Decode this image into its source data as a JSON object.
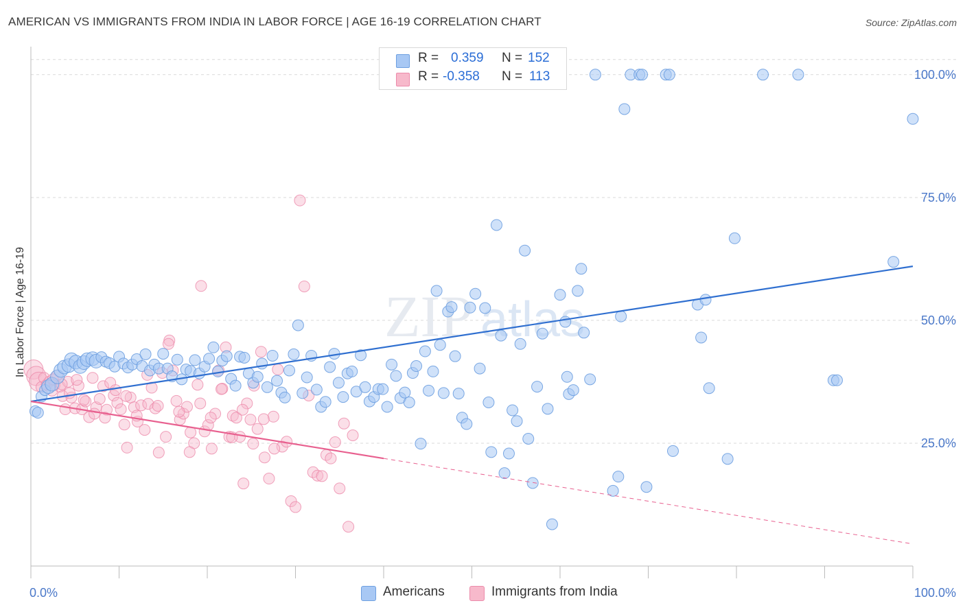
{
  "title": "AMERICAN VS IMMIGRANTS FROM INDIA IN LABOR FORCE | AGE 16-19 CORRELATION CHART",
  "source": "Source: ZipAtlas.com",
  "watermark": "ZIPatlas",
  "legend": {
    "rows": [
      {
        "r_label": "R =",
        "r_value": "0.359",
        "n_label": "N =",
        "n_value": "152",
        "color": "#a8c8f4"
      },
      {
        "r_label": "R =",
        "r_value": "-0.358",
        "n_label": "N =",
        "n_value": "113",
        "color": "#f7b9cb"
      }
    ]
  },
  "bottom_legend": [
    "Americans",
    "Immigrants from India"
  ],
  "colors": {
    "americans_fill": "#a8c8f4",
    "americans_stroke": "#6d9fe0",
    "americans_line": "#2f6fd0",
    "india_fill": "#f7b9cb",
    "india_stroke": "#ec8aaa",
    "india_line": "#e8608f",
    "grid": "#d9d9d9",
    "tick_text": "#4a78c9"
  },
  "chart_data": {
    "type": "scatter",
    "title": "AMERICAN VS IMMIGRANTS FROM INDIA IN LABOR FORCE | AGE 16-19 CORRELATION CHART",
    "xlabel": "",
    "ylabel": "In Labor Force | Age 16-19",
    "xlim": [
      0,
      100
    ],
    "ylim": [
      0,
      105
    ],
    "x_tick_labels": [
      "0.0%",
      "100.0%"
    ],
    "y_tick_labels": [
      "25.0%",
      "50.0%",
      "75.0%",
      "100.0%"
    ],
    "y_ticks": [
      25,
      50,
      75,
      100
    ],
    "grid": true,
    "legend_position": "top-center",
    "series": [
      {
        "name": "Americans",
        "r": 0.359,
        "n": 152,
        "trend": {
          "x": [
            0,
            100
          ],
          "y": [
            33.5,
            61.0
          ],
          "dashed_from": null
        },
        "points": [
          [
            0.5,
            31.5
          ],
          [
            0.8,
            31.2
          ],
          [
            1.2,
            34.5
          ],
          [
            1.6,
            35.8
          ],
          [
            2.0,
            36.5
          ],
          [
            2.4,
            37.0
          ],
          [
            3.0,
            38.5
          ],
          [
            3.4,
            39.8
          ],
          [
            3.8,
            40.5
          ],
          [
            4.3,
            40.8
          ],
          [
            4.6,
            42.0
          ],
          [
            5.1,
            41.5
          ],
          [
            5.6,
            40.6
          ],
          [
            6.0,
            41.4
          ],
          [
            6.4,
            42.0
          ],
          [
            7.0,
            42.2
          ],
          [
            7.4,
            41.7
          ],
          [
            8.0,
            42.5
          ],
          [
            8.5,
            41.6
          ],
          [
            8.9,
            41.3
          ],
          [
            9.5,
            40.6
          ],
          [
            10.0,
            42.6
          ],
          [
            10.5,
            41.2
          ],
          [
            11.0,
            40.4
          ],
          [
            11.5,
            41.0
          ],
          [
            12.0,
            42.1
          ],
          [
            12.6,
            40.7
          ],
          [
            13.0,
            43.1
          ],
          [
            13.5,
            39.8
          ],
          [
            14.0,
            41.0
          ],
          [
            14.5,
            40.2
          ],
          [
            15.0,
            43.2
          ],
          [
            15.5,
            40.2
          ],
          [
            16.0,
            38.6
          ],
          [
            16.6,
            42.0
          ],
          [
            17.1,
            38.0
          ],
          [
            17.6,
            40.0
          ],
          [
            18.1,
            39.7
          ],
          [
            18.6,
            41.9
          ],
          [
            19.1,
            39.2
          ],
          [
            19.7,
            40.6
          ],
          [
            20.2,
            42.2
          ],
          [
            20.7,
            44.5
          ],
          [
            21.2,
            39.6
          ],
          [
            21.7,
            41.8
          ],
          [
            22.2,
            42.7
          ],
          [
            22.7,
            38.1
          ],
          [
            23.2,
            36.7
          ],
          [
            23.7,
            42.6
          ],
          [
            24.2,
            42.4
          ],
          [
            24.7,
            39.2
          ],
          [
            25.2,
            37.3
          ],
          [
            25.7,
            38.5
          ],
          [
            26.2,
            41.2
          ],
          [
            26.8,
            36.4
          ],
          [
            27.4,
            42.8
          ],
          [
            27.9,
            37.7
          ],
          [
            28.4,
            35.3
          ],
          [
            28.8,
            34.3
          ],
          [
            29.3,
            39.8
          ],
          [
            29.8,
            43.1
          ],
          [
            30.3,
            49.0
          ],
          [
            30.8,
            35.2
          ],
          [
            31.3,
            38.4
          ],
          [
            31.8,
            42.8
          ],
          [
            32.4,
            35.9
          ],
          [
            32.9,
            32.4
          ],
          [
            33.4,
            33.4
          ],
          [
            33.9,
            40.5
          ],
          [
            34.4,
            43.2
          ],
          [
            34.9,
            37.3
          ],
          [
            35.4,
            34.4
          ],
          [
            35.9,
            39.2
          ],
          [
            36.4,
            39.6
          ],
          [
            36.9,
            35.5
          ],
          [
            37.4,
            42.9
          ],
          [
            37.9,
            36.4
          ],
          [
            38.4,
            33.5
          ],
          [
            38.9,
            34.4
          ],
          [
            39.4,
            36.0
          ],
          [
            39.9,
            36.0
          ],
          [
            40.4,
            32.4
          ],
          [
            40.9,
            41.0
          ],
          [
            41.4,
            38.7
          ],
          [
            41.9,
            34.2
          ],
          [
            42.4,
            35.3
          ],
          [
            42.9,
            33.3
          ],
          [
            43.3,
            39.3
          ],
          [
            43.7,
            40.7
          ],
          [
            44.2,
            24.9
          ],
          [
            44.7,
            43.7
          ],
          [
            45.1,
            35.7
          ],
          [
            45.6,
            39.6
          ],
          [
            46.0,
            56.0
          ],
          [
            46.4,
            45.0
          ],
          [
            46.8,
            35.2
          ],
          [
            47.3,
            51.8
          ],
          [
            47.7,
            52.7
          ],
          [
            48.1,
            42.7
          ],
          [
            48.5,
            35.1
          ],
          [
            48.9,
            30.2
          ],
          [
            49.4,
            28.9
          ],
          [
            49.8,
            52.6
          ],
          [
            50.4,
            55.4
          ],
          [
            50.9,
            40.2
          ],
          [
            51.5,
            52.5
          ],
          [
            51.9,
            33.3
          ],
          [
            52.2,
            23.2
          ],
          [
            52.8,
            69.4
          ],
          [
            53.3,
            46.9
          ],
          [
            53.7,
            18.9
          ],
          [
            54.2,
            22.9
          ],
          [
            54.6,
            31.7
          ],
          [
            55.1,
            29.5
          ],
          [
            55.5,
            45.2
          ],
          [
            56.0,
            64.2
          ],
          [
            56.4,
            25.9
          ],
          [
            56.9,
            16.9
          ],
          [
            57.4,
            36.5
          ],
          [
            58.0,
            47.3
          ],
          [
            58.6,
            32.0
          ],
          [
            59.1,
            8.5
          ],
          [
            60.0,
            55.2
          ],
          [
            60.6,
            49.7
          ],
          [
            60.8,
            38.5
          ],
          [
            61.0,
            35.0
          ],
          [
            61.5,
            35.8
          ],
          [
            62.0,
            56.0
          ],
          [
            62.4,
            60.5
          ],
          [
            62.7,
            47.5
          ],
          [
            63.4,
            38.0
          ],
          [
            64.0,
            100.0
          ],
          [
            66.0,
            15.3
          ],
          [
            66.6,
            18.2
          ],
          [
            66.9,
            50.8
          ],
          [
            67.3,
            93.0
          ],
          [
            68.0,
            100.0
          ],
          [
            69.0,
            100.0
          ],
          [
            69.3,
            100.0
          ],
          [
            69.8,
            16.1
          ],
          [
            72.0,
            100.0
          ],
          [
            72.4,
            100.0
          ],
          [
            72.8,
            23.4
          ],
          [
            75.6,
            53.2
          ],
          [
            76.0,
            46.5
          ],
          [
            76.5,
            54.2
          ],
          [
            76.9,
            36.2
          ],
          [
            79.0,
            21.8
          ],
          [
            79.8,
            66.7
          ],
          [
            83.0,
            100.0
          ],
          [
            87.0,
            100.0
          ],
          [
            91.0,
            37.8
          ],
          [
            91.4,
            37.8
          ],
          [
            97.8,
            61.9
          ],
          [
            100.0,
            91.0
          ],
          [
            59.0,
            100.0
          ]
        ]
      },
      {
        "name": "Immigrants from India",
        "r": -0.358,
        "n": 113,
        "trend": {
          "x": [
            0,
            100
          ],
          "y": [
            33.5,
            4.5
          ],
          "dashed_from": 40
        },
        "points": [
          [
            0.3,
            40.0
          ],
          [
            0.6,
            38.7
          ],
          [
            0.9,
            37.5
          ],
          [
            1.2,
            36.4
          ],
          [
            1.5,
            38.3
          ],
          [
            1.8,
            36.9
          ],
          [
            2.1,
            37.5
          ],
          [
            2.4,
            35.7
          ],
          [
            2.7,
            36.9
          ],
          [
            3.0,
            38.8
          ],
          [
            3.3,
            36.5
          ],
          [
            3.6,
            34.6
          ],
          [
            3.9,
            31.9
          ],
          [
            4.2,
            37.5
          ],
          [
            4.6,
            34.3
          ],
          [
            5.0,
            32.1
          ],
          [
            5.4,
            36.7
          ],
          [
            5.8,
            31.9
          ],
          [
            6.2,
            33.5
          ],
          [
            6.6,
            30.3
          ],
          [
            7.0,
            38.3
          ],
          [
            7.4,
            32.3
          ],
          [
            7.8,
            34.0
          ],
          [
            8.2,
            36.6
          ],
          [
            8.6,
            31.8
          ],
          [
            9.0,
            37.3
          ],
          [
            9.4,
            34.7
          ],
          [
            9.8,
            33.2
          ],
          [
            10.2,
            31.9
          ],
          [
            10.6,
            28.8
          ],
          [
            10.9,
            24.1
          ],
          [
            11.3,
            34.3
          ],
          [
            11.7,
            32.3
          ],
          [
            12.1,
            29.4
          ],
          [
            12.5,
            32.7
          ],
          [
            12.9,
            27.7
          ],
          [
            13.3,
            33.0
          ],
          [
            13.7,
            36.3
          ],
          [
            14.1,
            32.1
          ],
          [
            14.5,
            23.1
          ],
          [
            14.9,
            39.3
          ],
          [
            15.3,
            26.3
          ],
          [
            15.7,
            45.9
          ],
          [
            16.1,
            39.8
          ],
          [
            16.5,
            33.6
          ],
          [
            16.9,
            29.8
          ],
          [
            17.3,
            31.0
          ],
          [
            17.7,
            32.4
          ],
          [
            18.1,
            27.2
          ],
          [
            18.5,
            25.0
          ],
          [
            18.9,
            36.9
          ],
          [
            19.3,
            57.0
          ],
          [
            19.7,
            27.4
          ],
          [
            20.1,
            28.7
          ],
          [
            20.5,
            23.9
          ],
          [
            20.9,
            31.0
          ],
          [
            21.3,
            39.8
          ],
          [
            21.7,
            36.1
          ],
          [
            22.1,
            44.5
          ],
          [
            22.5,
            26.3
          ],
          [
            22.9,
            30.6
          ],
          [
            23.3,
            30.2
          ],
          [
            23.7,
            26.3
          ],
          [
            24.1,
            16.8
          ],
          [
            24.5,
            33.1
          ],
          [
            24.9,
            29.8
          ],
          [
            25.3,
            36.7
          ],
          [
            25.7,
            27.9
          ],
          [
            26.1,
            43.6
          ],
          [
            26.5,
            22.1
          ],
          [
            27.0,
            17.8
          ],
          [
            27.5,
            30.4
          ],
          [
            28.0,
            40.0
          ],
          [
            28.5,
            24.3
          ],
          [
            29.0,
            25.3
          ],
          [
            29.5,
            13.2
          ],
          [
            30.0,
            12.0
          ],
          [
            30.5,
            74.4
          ],
          [
            31.0,
            56.9
          ],
          [
            31.5,
            34.7
          ],
          [
            32.0,
            19.1
          ],
          [
            32.5,
            18.4
          ],
          [
            33.0,
            18.3
          ],
          [
            33.5,
            22.6
          ],
          [
            34.0,
            21.9
          ],
          [
            34.5,
            25.2
          ],
          [
            35.0,
            15.8
          ],
          [
            35.5,
            29.0
          ],
          [
            36.0,
            8.0
          ],
          [
            36.5,
            26.6
          ],
          [
            2.5,
            38.0
          ],
          [
            3.5,
            37.0
          ],
          [
            4.4,
            35.2
          ],
          [
            5.2,
            37.9
          ],
          [
            6.0,
            33.8
          ],
          [
            7.2,
            31.0
          ],
          [
            8.4,
            30.2
          ],
          [
            9.6,
            35.8
          ],
          [
            10.8,
            34.6
          ],
          [
            12.0,
            30.6
          ],
          [
            13.2,
            38.9
          ],
          [
            14.4,
            32.6
          ],
          [
            15.6,
            45.2
          ],
          [
            16.8,
            31.4
          ],
          [
            18.0,
            23.2
          ],
          [
            19.2,
            33.1
          ],
          [
            20.4,
            30.2
          ],
          [
            21.6,
            36.0
          ],
          [
            22.8,
            26.2
          ],
          [
            24.0,
            31.8
          ],
          [
            25.2,
            24.9
          ],
          [
            26.4,
            29.9
          ],
          [
            27.6,
            23.9
          ]
        ]
      }
    ]
  }
}
